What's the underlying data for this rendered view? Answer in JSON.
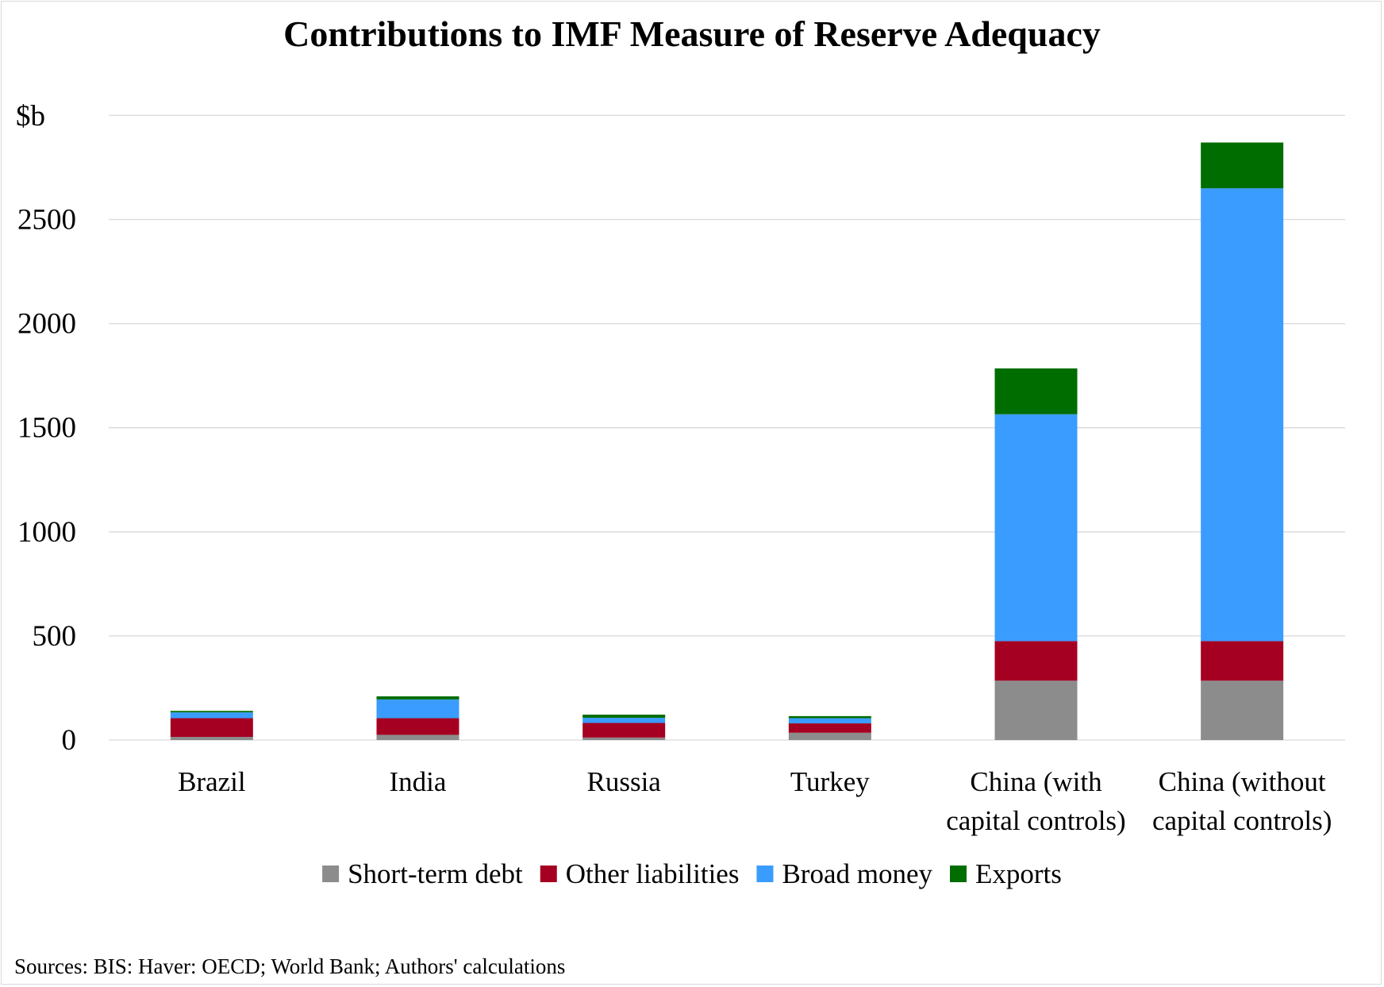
{
  "chart_data": {
    "type": "bar",
    "stacked": true,
    "title": "Contributions to IMF Measure of Reserve Adequacy",
    "ylabel": "$b",
    "xlabel": "",
    "ylim": [
      0,
      3000
    ],
    "yticks": [
      0,
      500,
      1000,
      1500,
      2000,
      2500
    ],
    "grid": true,
    "legend_position": "bottom",
    "categories": [
      [
        "Brazil"
      ],
      [
        "India"
      ],
      [
        "Russia"
      ],
      [
        "Turkey"
      ],
      [
        "China (with",
        "capital controls)"
      ],
      [
        "China (without",
        "capital controls)"
      ]
    ],
    "series": [
      {
        "name": "Short-term debt",
        "color": "#8c8c8c",
        "values": [
          15,
          25,
          12,
          35,
          285,
          285
        ]
      },
      {
        "name": "Other liabilities",
        "color": "#a50021",
        "values": [
          90,
          80,
          70,
          45,
          190,
          190
        ]
      },
      {
        "name": "Broad money",
        "color": "#3a9cff",
        "values": [
          28,
          90,
          25,
          25,
          1090,
          2175
        ]
      },
      {
        "name": "Exports",
        "color": "#006d00",
        "values": [
          7,
          15,
          15,
          10,
          220,
          220
        ]
      }
    ]
  },
  "footer": {
    "source": "Sources: BIS: Haver: OECD; World Bank; Authors' calculations"
  }
}
